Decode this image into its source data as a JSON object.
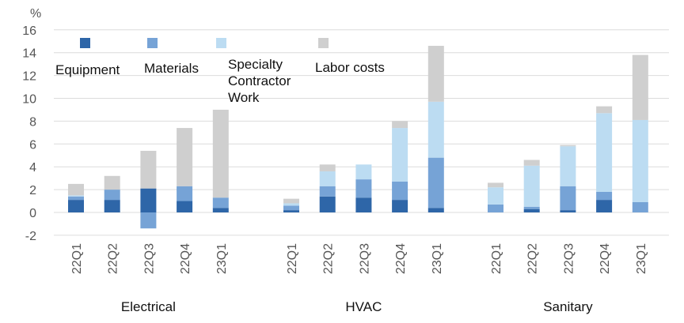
{
  "chart_data": {
    "type": "bar",
    "stacked": true,
    "ylabel": "%",
    "ylim": [
      -2,
      16
    ],
    "yticks": [
      -2,
      0,
      2,
      4,
      6,
      8,
      10,
      12,
      14,
      16
    ],
    "grid": true,
    "legend_position": "top-left",
    "groups": [
      {
        "name": "Electrical",
        "categories": [
          "22Q1",
          "22Q2",
          "22Q3",
          "22Q4",
          "23Q1"
        ]
      },
      {
        "name": "HVAC",
        "categories": [
          "22Q1",
          "22Q2",
          "22Q3",
          "22Q4",
          "23Q1"
        ]
      },
      {
        "name": "Sanitary",
        "categories": [
          "22Q1",
          "22Q2",
          "22Q3",
          "22Q4",
          "23Q1"
        ]
      }
    ],
    "series": [
      {
        "name": "Equipment",
        "color": "#2e66a8",
        "values": [
          1.1,
          1.1,
          2.1,
          1.0,
          0.4,
          0.2,
          1.4,
          1.3,
          1.1,
          0.4,
          0.0,
          0.3,
          0.2,
          1.1,
          0.0
        ]
      },
      {
        "name": "Materials",
        "color": "#76a3d6",
        "values": [
          0.3,
          0.9,
          -1.4,
          1.3,
          0.9,
          0.4,
          0.9,
          1.6,
          1.6,
          4.4,
          0.7,
          0.2,
          2.1,
          0.7,
          0.9
        ]
      },
      {
        "name": "Specialty Contractor Work",
        "color": "#bcdcf2",
        "values": [
          0.1,
          0.0,
          0.0,
          0.0,
          0.0,
          0.2,
          1.3,
          1.3,
          4.7,
          4.9,
          1.5,
          3.6,
          3.5,
          6.9,
          7.2
        ]
      },
      {
        "name": "Labor costs",
        "color": "#cfcfcf",
        "values": [
          1.0,
          1.2,
          3.3,
          5.1,
          7.7,
          0.4,
          0.6,
          0.0,
          0.6,
          4.9,
          0.4,
          0.5,
          0.1,
          0.6,
          5.7
        ]
      }
    ]
  }
}
